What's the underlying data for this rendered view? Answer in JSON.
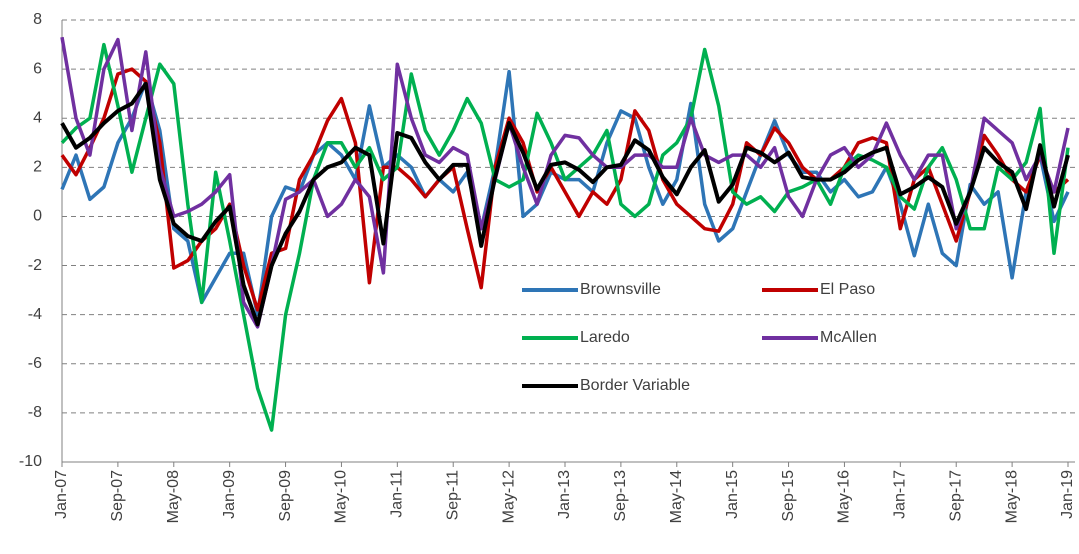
{
  "chart_data": {
    "type": "line",
    "categories": [
      "Jan-07",
      null,
      null,
      null,
      "Sep-07",
      null,
      null,
      null,
      "May-08",
      null,
      null,
      null,
      "Jan-09",
      null,
      null,
      null,
      "Sep-09",
      null,
      null,
      null,
      "May-10",
      null,
      null,
      null,
      "Jan-11",
      null,
      null,
      null,
      "Sep-11",
      null,
      null,
      null,
      "May-12",
      null,
      null,
      null,
      "Jan-13",
      null,
      null,
      null,
      "Sep-13",
      null,
      null,
      null,
      "May-14",
      null,
      null,
      null,
      "Jan-15",
      null,
      null,
      null,
      "Sep-15",
      null,
      null,
      null,
      "May-16",
      null,
      null,
      null,
      "Jan-17",
      null,
      null,
      null,
      "Sep-17",
      null,
      null,
      null,
      "May-18",
      null,
      null,
      null,
      "Jan-19"
    ],
    "series": [
      {
        "name": "Brownsville",
        "color": "#2e75b6",
        "values": [
          1.1,
          2.5,
          0.7,
          1.2,
          3.0,
          4.0,
          5.5,
          3.5,
          -0.5,
          -1.0,
          -3.5,
          -2.5,
          -1.5,
          -1.5,
          -4.0,
          0.0,
          1.2,
          1.0,
          2.5,
          3.0,
          2.5,
          1.5,
          4.5,
          2.0,
          2.5,
          2.0,
          0.8,
          1.5,
          1.0,
          1.8,
          -0.5,
          2.0,
          5.9,
          0.0,
          0.5,
          1.8,
          1.5,
          1.5,
          1.0,
          3.0,
          4.3,
          4.0,
          2.0,
          0.5,
          1.5,
          4.6,
          0.5,
          -1.0,
          -0.5,
          1.0,
          2.5,
          3.9,
          2.5,
          1.8,
          1.8,
          1.0,
          1.5,
          0.8,
          1.0,
          2.0,
          0.5,
          -1.6,
          0.5,
          -1.5,
          -2.0,
          1.3,
          0.5,
          1.0,
          -2.5,
          1.0,
          2.5,
          -0.2,
          1.0
        ]
      },
      {
        "name": "El Paso",
        "color": "#c00000",
        "values": [
          2.5,
          1.7,
          2.8,
          4.0,
          5.8,
          6.0,
          5.5,
          3.0,
          -2.1,
          -1.8,
          -1.0,
          -0.5,
          0.5,
          -2.0,
          -3.8,
          -1.5,
          -1.3,
          1.5,
          2.5,
          3.9,
          4.8,
          3.0,
          -2.7,
          2.0,
          2.0,
          1.5,
          0.8,
          1.5,
          2.0,
          -0.5,
          -2.9,
          2.0,
          4.0,
          3.0,
          1.0,
          2.0,
          1.0,
          0.0,
          1.0,
          0.5,
          1.5,
          4.3,
          3.5,
          1.5,
          0.5,
          0.0,
          -0.5,
          -0.6,
          0.5,
          3.0,
          2.5,
          3.6,
          3.0,
          2.0,
          1.5,
          1.5,
          2.0,
          3.0,
          3.2,
          3.0,
          -0.5,
          1.5,
          2.0,
          0.5,
          -1.0,
          1.0,
          3.3,
          2.5,
          1.5,
          1.0,
          2.5,
          1.0,
          1.5
        ]
      },
      {
        "name": "Laredo",
        "color": "#00b050",
        "values": [
          3.0,
          3.6,
          4.0,
          7.0,
          4.5,
          1.8,
          4.0,
          6.2,
          5.4,
          0.5,
          -3.5,
          1.8,
          -1.0,
          -4.0,
          -7.0,
          -8.7,
          -4.0,
          -1.5,
          1.5,
          3.0,
          3.0,
          2.0,
          2.8,
          1.5,
          2.0,
          5.8,
          3.5,
          2.5,
          3.5,
          4.8,
          3.8,
          1.5,
          1.2,
          1.5,
          4.2,
          3.0,
          1.5,
          2.0,
          2.5,
          3.5,
          0.5,
          0.0,
          0.5,
          2.5,
          3.0,
          4.0,
          6.8,
          4.5,
          1.0,
          0.5,
          0.8,
          0.2,
          1.0,
          1.2,
          1.5,
          0.5,
          2.0,
          2.5,
          2.3,
          2.0,
          0.8,
          0.3,
          2.0,
          2.8,
          1.5,
          -0.5,
          -0.5,
          2.0,
          1.5,
          2.2,
          4.4,
          -1.5,
          2.8
        ]
      },
      {
        "name": "McAllen",
        "color": "#7030a0",
        "values": [
          7.3,
          4.0,
          2.5,
          6.0,
          7.2,
          3.5,
          6.7,
          2.0,
          0.0,
          0.2,
          0.5,
          1.0,
          1.7,
          -3.5,
          -4.5,
          -2.0,
          0.7,
          1.0,
          1.5,
          0.0,
          0.5,
          1.5,
          0.8,
          -2.3,
          6.2,
          4.0,
          2.5,
          2.2,
          2.8,
          2.5,
          -0.5,
          1.5,
          3.8,
          2.0,
          0.5,
          2.5,
          3.3,
          3.2,
          2.5,
          2.0,
          2.0,
          2.5,
          2.5,
          2.0,
          2.0,
          4.0,
          2.5,
          2.2,
          2.5,
          2.5,
          2.0,
          2.8,
          0.8,
          0.0,
          1.5,
          2.5,
          2.8,
          2.0,
          2.5,
          3.8,
          2.5,
          1.5,
          2.5,
          2.5,
          -0.5,
          1.0,
          4.0,
          3.5,
          3.0,
          1.5,
          2.5,
          1.0,
          3.6
        ]
      },
      {
        "name": "Border Variable",
        "color": "#000000",
        "values": [
          3.8,
          2.8,
          3.2,
          3.8,
          4.3,
          4.6,
          5.4,
          1.5,
          -0.3,
          -0.8,
          -1.0,
          -0.2,
          0.4,
          -2.8,
          -4.4,
          -2.0,
          -0.7,
          0.2,
          1.5,
          2.0,
          2.2,
          2.8,
          2.5,
          -1.1,
          3.4,
          3.2,
          2.2,
          1.5,
          2.1,
          2.1,
          -1.2,
          1.6,
          3.8,
          2.6,
          1.1,
          2.1,
          2.2,
          1.9,
          1.4,
          2.0,
          2.1,
          3.1,
          2.7,
          1.6,
          0.9,
          2.0,
          2.7,
          0.6,
          1.3,
          2.8,
          2.6,
          2.2,
          2.6,
          1.6,
          1.5,
          1.5,
          1.8,
          2.3,
          2.6,
          2.8,
          0.9,
          1.2,
          1.6,
          1.2,
          -0.3,
          1.0,
          2.8,
          2.2,
          1.8,
          0.3,
          2.9,
          0.4,
          2.5
        ]
      }
    ],
    "ylim": [
      -10,
      8
    ],
    "yticks": [
      -10,
      -8,
      -6,
      -4,
      -2,
      0,
      2,
      4,
      6,
      8
    ],
    "grid": true
  }
}
